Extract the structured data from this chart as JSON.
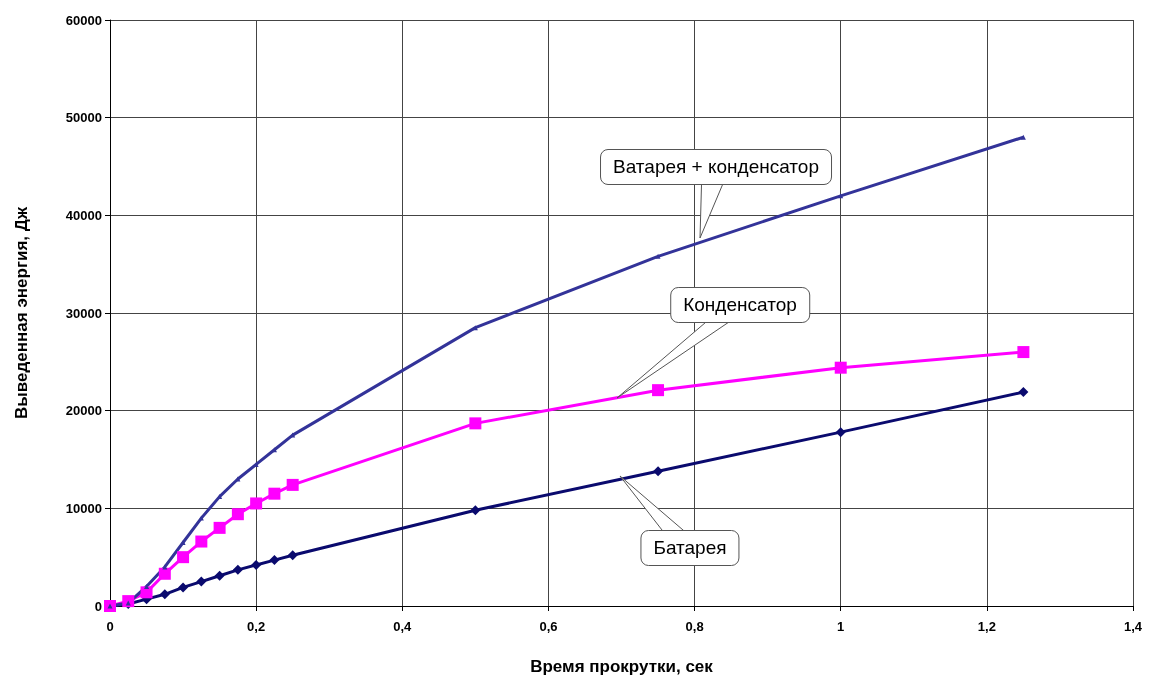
{
  "chart_data": {
    "type": "line",
    "xlabel": "Время прокрутки, сек",
    "ylabel": "Выведенная энергия, Дж",
    "x": [
      0,
      0.025,
      0.05,
      0.075,
      0.1,
      0.125,
      0.15,
      0.175,
      0.2,
      0.225,
      0.25,
      0.5,
      0.75,
      1,
      1.25
    ],
    "series": [
      {
        "color": "#0a0a6e",
        "marker": "diamond",
        "values": [
          0,
          200,
          700,
          1200,
          1900,
          2500,
          3100,
          3700,
          4200,
          4700,
          5200,
          9800,
          13800,
          17800,
          21900
        ]
      },
      {
        "color": "#ff00ff",
        "marker": "square",
        "values": [
          0,
          500,
          1400,
          3300,
          5000,
          6600,
          8000,
          9400,
          10500,
          11500,
          12400,
          18700,
          22100,
          24400,
          26000
        ]
      },
      {
        "color": "#333399",
        "marker": "triangle",
        "values": [
          0,
          300,
          2000,
          4000,
          6500,
          9000,
          11200,
          13000,
          14500,
          16000,
          17500,
          28500,
          35800,
          42000,
          48000
        ]
      }
    ],
    "xlim": [
      0,
      1.4
    ],
    "xticks": [
      0,
      {
        "value": 0.2,
        "label": "0,2"
      },
      {
        "value": 0.4,
        "label": "0,4"
      },
      {
        "value": 0.6,
        "label": "0,6"
      },
      {
        "value": 0.8,
        "label": "0,8"
      },
      1,
      {
        "value": 1.2,
        "label": "1,2"
      },
      {
        "value": 1.4,
        "label": "1,4"
      }
    ],
    "ylim": [
      0,
      60000
    ],
    "yticks": [
      0,
      10000,
      20000,
      30000,
      40000,
      50000,
      60000
    ],
    "grid": true,
    "annotations": [
      "Ватарея + конденсатор",
      "Конденсатор",
      "Батарея"
    ]
  }
}
